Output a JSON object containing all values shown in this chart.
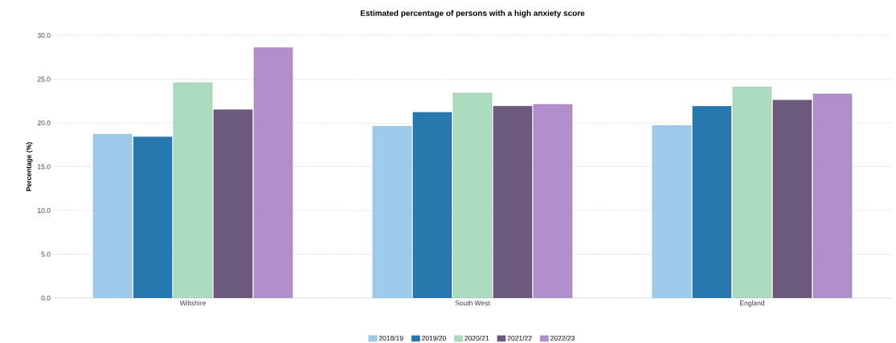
{
  "chart_data": {
    "type": "bar",
    "title": "Estimated percentage of persons with a high anxiety score",
    "ylabel": "Percentage (%)",
    "categories": [
      "Wiltshire",
      "South West",
      "England"
    ],
    "series": [
      {
        "name": "2018/19",
        "color": "#9ccbeb",
        "values": [
          18.7,
          19.6,
          19.7
        ]
      },
      {
        "name": "2019/20",
        "color": "#2878b0",
        "values": [
          18.4,
          21.2,
          21.9
        ]
      },
      {
        "name": "2020/21",
        "color": "#acdcc0",
        "values": [
          24.6,
          23.4,
          24.1
        ]
      },
      {
        "name": "2021/22",
        "color": "#6b5a7c",
        "values": [
          21.5,
          21.9,
          22.6
        ]
      },
      {
        "name": "2022/23",
        "color": "#b18ecc",
        "values": [
          28.6,
          22.1,
          23.3
        ]
      }
    ],
    "ylim": [
      0,
      30
    ],
    "yticks": [
      {
        "value": 0,
        "label": "0.0"
      },
      {
        "value": 5,
        "label": "5.0"
      },
      {
        "value": 10,
        "label": "10.0"
      },
      {
        "value": 15,
        "label": "15.0"
      },
      {
        "value": 20,
        "label": "20.0"
      },
      {
        "value": 25,
        "label": "25.0"
      },
      {
        "value": 30,
        "label": "30.0"
      }
    ],
    "grid": "y",
    "legend": "bottom"
  }
}
